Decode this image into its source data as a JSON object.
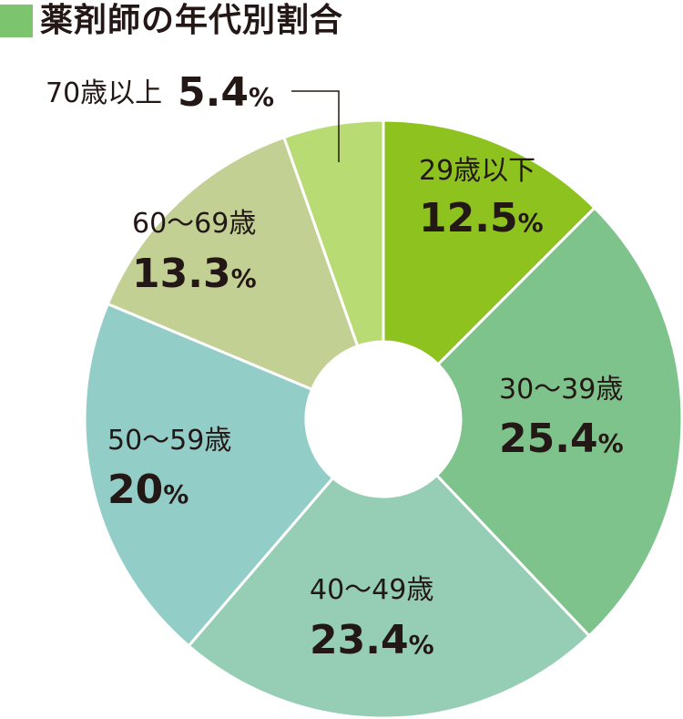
{
  "chart_data": {
    "type": "pie",
    "title": "薬剤師の年代別割合",
    "title_color": "#7dc46e",
    "donut": true,
    "categories": [
      "29歳以下",
      "30〜39歳",
      "40〜49歳",
      "50〜59歳",
      "60〜69歳",
      "70歳以上"
    ],
    "values": [
      12.5,
      25.4,
      23.4,
      20,
      13.3,
      5.4
    ],
    "value_labels": [
      "12.5",
      "25.4",
      "23.4",
      "20",
      "13.3",
      "5.4"
    ],
    "unit": "%",
    "colors": [
      "#8dc21f",
      "#7fc38c",
      "#96cdb5",
      "#93cdc8",
      "#c2d094",
      "#b9db73"
    ]
  }
}
